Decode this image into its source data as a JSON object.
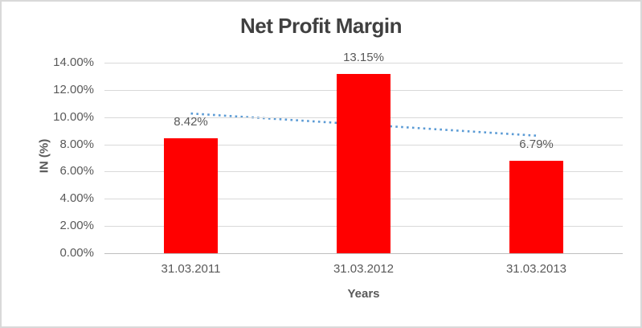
{
  "window": {
    "background": "#FFFFFF",
    "border_color": "#D9D9D9"
  },
  "chart_data": {
    "type": "bar",
    "title": "Net Profit Margin",
    "categories": [
      "31.03.2011",
      "31.03.2012",
      "31.03.2013"
    ],
    "series": [
      {
        "name": "Net Profit Margin",
        "values": [
          8.42,
          13.15,
          6.79
        ]
      }
    ],
    "data_labels": [
      "8.42%",
      "13.15%",
      "6.79%"
    ],
    "xlabel": "Years",
    "ylabel": "IN (%)",
    "ylim": [
      0,
      14
    ],
    "ytick_step": 2,
    "ytick_labels": [
      "0.00%",
      "2.00%",
      "4.00%",
      "6.00%",
      "8.00%",
      "10.00%",
      "12.00%",
      "14.00%"
    ],
    "grid": true,
    "legend": "none",
    "bar_color": "#FF0000",
    "trendline": {
      "kind": "linear",
      "style": "dotted",
      "color": "#5B9BD5",
      "endpoints_pct": [
        10.27,
        8.64
      ]
    }
  },
  "styles": {
    "title_color": "#404040",
    "axis_text_color": "#595959",
    "data_label_color": "#595959",
    "gridline_color": "#D9D9D9",
    "axis_line_color": "#BFBFBF"
  }
}
